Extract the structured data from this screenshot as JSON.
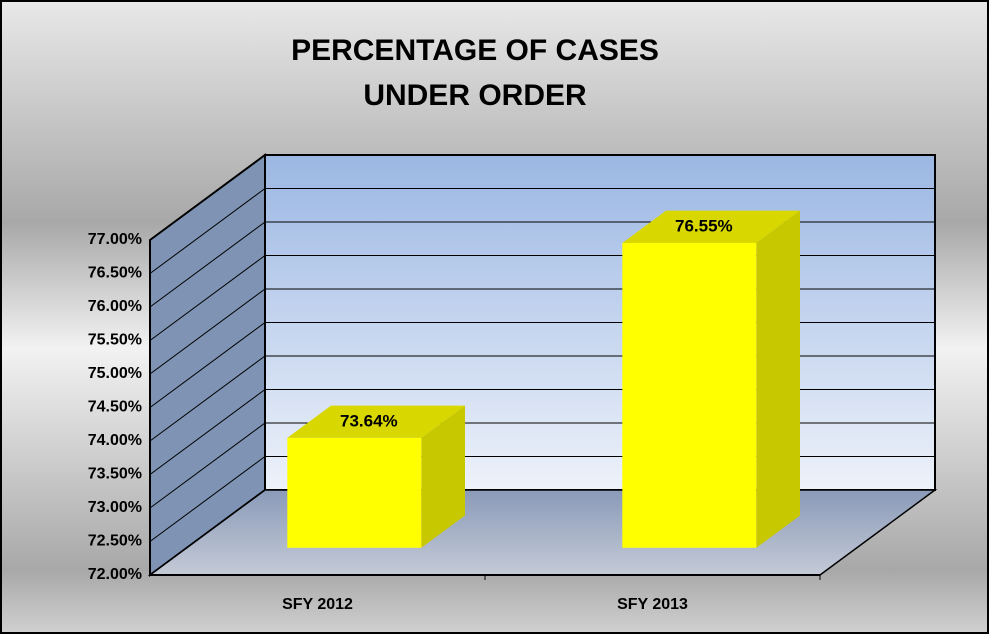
{
  "chart_data": {
    "type": "bar3d",
    "title": [
      "PERCENTAGE OF CASES",
      "UNDER ORDER"
    ],
    "categories": [
      "SFY 2012",
      "SFY 2013"
    ],
    "values": [
      73.64,
      76.55
    ],
    "value_labels": [
      "73.64%",
      "76.55%"
    ],
    "color": "#ffff00",
    "ylim": [
      72,
      77
    ],
    "yticks": [
      {
        "value": 72,
        "label": "72.00%"
      },
      {
        "value": 72.5,
        "label": "72.50%"
      },
      {
        "value": 73,
        "label": "73.00%"
      },
      {
        "value": 73.5,
        "label": "73.50%"
      },
      {
        "value": 74,
        "label": "74.00%"
      },
      {
        "value": 74.5,
        "label": "74.50%"
      },
      {
        "value": 75,
        "label": "75.00%"
      },
      {
        "value": 75.5,
        "label": "75.50%"
      },
      {
        "value": 76,
        "label": "76.00%"
      },
      {
        "value": 76.5,
        "label": "76.50%"
      },
      {
        "value": 77,
        "label": "77.00%"
      }
    ],
    "grid": true
  }
}
